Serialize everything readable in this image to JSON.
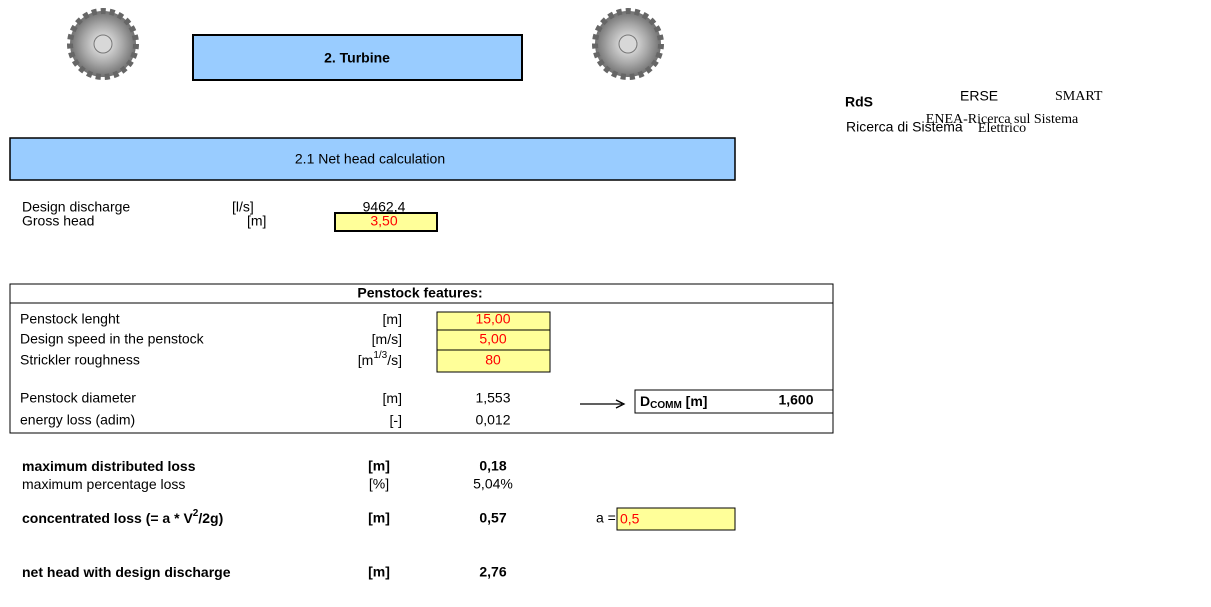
{
  "header": {
    "title": "2. Turbine"
  },
  "logos": {
    "rds": "RdS",
    "rds_caption": "Ricerca di Sistema",
    "erse": "ERSE",
    "erse_caption": [
      "ENEA-Ricerca sul Sistema",
      "Elettrico"
    ],
    "smart": "SMART"
  },
  "section_title": "2.1 Net head calculation",
  "inputs": [
    {
      "label": "Design discharge",
      "unit": "[l/s]",
      "value": "9462,4"
    },
    {
      "label": "Gross head",
      "unit": "[m]",
      "value": "3,50"
    }
  ],
  "penstock": {
    "title": "Penstock features:",
    "rows": [
      {
        "label": "Penstock lenght",
        "unit": [
          "[m]"
        ],
        "value": "15,00"
      },
      {
        "label": "Design speed in the penstock",
        "unit": [
          "[m/s]"
        ],
        "value": "5,00"
      },
      {
        "label": "Strickler roughness",
        "unit": [
          "[m",
          "1/3",
          "/s]"
        ],
        "value": "80"
      },
      {
        "label": "Penstock diameter",
        "unit": [
          "[m]"
        ],
        "value": "1,553"
      },
      {
        "label": "energy loss (adim)",
        "unit": [
          "[-]"
        ],
        "value": "0,012"
      }
    ],
    "dcomm": {
      "label": [
        "D",
        "COMM",
        " [m]"
      ],
      "value": "1,600"
    }
  },
  "results": [
    {
      "label": [
        "maximum distributed loss"
      ],
      "unit": "[m]",
      "value": "0,18"
    },
    {
      "label": [
        "maximum percentage loss"
      ],
      "unit": "[%]",
      "value": "5,04%"
    },
    {
      "label": [
        "concentrated loss (= a * V",
        "2",
        "/2g)"
      ],
      "unit": "[m]",
      "value": "0,57"
    },
    {
      "label": [
        "net head with design discharge"
      ],
      "unit": "[m]",
      "value": "2,76"
    }
  ],
  "coefficient": {
    "label": "a =",
    "value": "0,5"
  }
}
